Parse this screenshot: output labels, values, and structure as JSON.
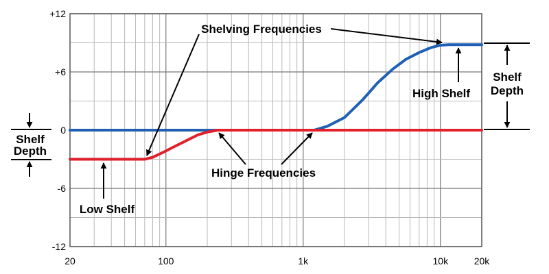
{
  "chart_data": {
    "type": "line",
    "x_scale": "log",
    "xlim": [
      20,
      20000
    ],
    "ylim": [
      -12,
      12
    ],
    "grid": true,
    "x_ticks": [
      {
        "value": 20,
        "label": "20"
      },
      {
        "value": 100,
        "label": "100"
      },
      {
        "value": 1000,
        "label": "1k"
      },
      {
        "value": 10000,
        "label": "10k"
      },
      {
        "value": 20000,
        "label": "20k"
      }
    ],
    "y_ticks": [
      {
        "value": 12,
        "label": "+12"
      },
      {
        "value": 6,
        "label": "+6"
      },
      {
        "value": 0,
        "label": "0"
      },
      {
        "value": -6,
        "label": "-6"
      },
      {
        "value": -12,
        "label": "-12"
      }
    ],
    "series": [
      {
        "color": "#1f5fb4",
        "x": [
          20,
          1200,
          1500,
          2000,
          2700,
          3500,
          4500,
          5600,
          7000,
          8500,
          10000,
          11500,
          20000
        ],
        "y": [
          0,
          0,
          0.4,
          1.3,
          3.1,
          4.9,
          6.3,
          7.3,
          8.0,
          8.5,
          8.75,
          8.8,
          8.8
        ]
      },
      {
        "color": "#e0202a",
        "x": [
          20,
          70,
          80,
          95,
          115,
          140,
          170,
          200,
          240,
          20000
        ],
        "y": [
          -3,
          -3,
          -2.8,
          -2.3,
          -1.7,
          -1.1,
          -0.5,
          -0.2,
          0,
          0
        ]
      }
    ],
    "annotations": {
      "shelving": "Shelving Frequencies",
      "hinge": "Hinge Frequencies",
      "low_shelf": "Low Shelf",
      "high_shelf": "High Shelf",
      "shelf_depth_left": [
        "Shelf",
        "Depth"
      ],
      "shelf_depth_right": [
        "Shelf",
        "Depth"
      ]
    }
  }
}
